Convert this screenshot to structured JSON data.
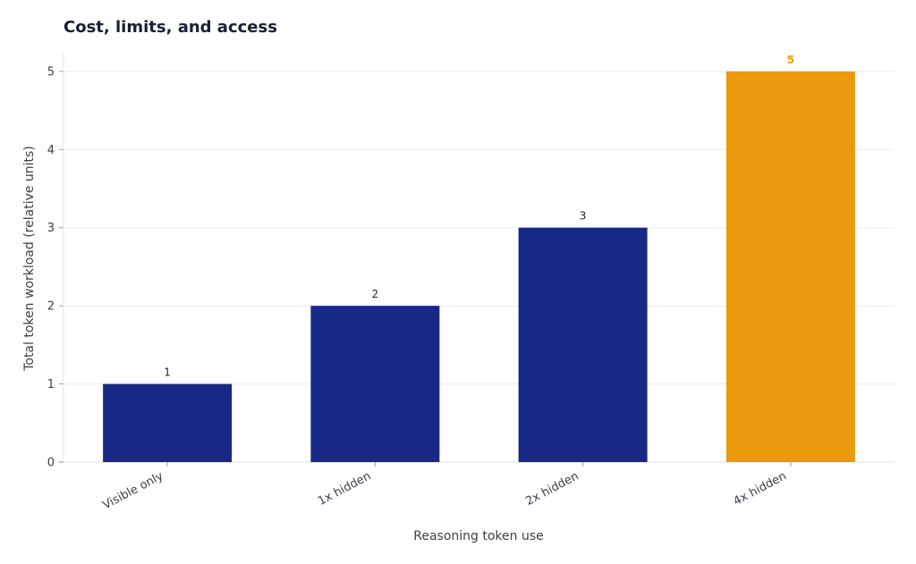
{
  "chart_data": {
    "type": "bar",
    "title": "Cost, limits, and access",
    "xlabel": "Reasoning token use",
    "ylabel": "Total token workload (relative units)",
    "categories": [
      "Visible only",
      "1x hidden",
      "2x hidden",
      "4x hidden"
    ],
    "values": [
      1,
      2,
      3,
      5
    ],
    "data_labels": [
      "1",
      "2",
      "3",
      "5"
    ],
    "ylim": [
      0,
      5.25
    ],
    "yticks": [
      0,
      1,
      2,
      3,
      4,
      5
    ],
    "grid": "horizontal",
    "colors": {
      "base": "#182985",
      "highlight": "#ea9a0c",
      "highlight_index": 3
    }
  }
}
